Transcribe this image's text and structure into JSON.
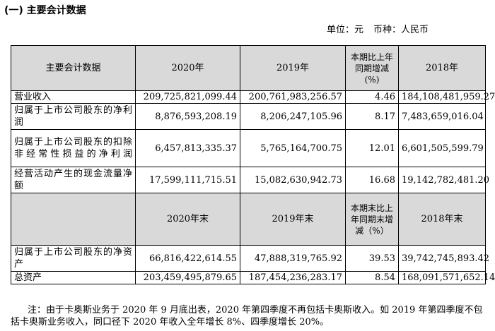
{
  "section_title": "(一) 主要会计数据",
  "unit": {
    "unit_label": "单位：元",
    "currency_label": "币种：人民币"
  },
  "table": {
    "header1": {
      "item": "主要会计数据",
      "y2020": "2020年",
      "y2019": "2019年",
      "change": "本期比上年同期增减(%)",
      "y2018": "2018年"
    },
    "rows1": [
      {
        "label": "营业收入",
        "y2020": "209,725,821,099.44",
        "y2019": "200,761,983,256.57",
        "change": "4.46",
        "y2018": "184,108,481,959.27"
      },
      {
        "label": "归属于上市公司股东的净利润",
        "y2020": "8,876,593,208.19",
        "y2019": "8,206,247,105.96",
        "change": "8.17",
        "y2018": "7,483,659,016.04"
      },
      {
        "label": "归属于上市公司股东的扣除非经常性损益的净利润",
        "y2020": "6,457,813,335.37",
        "y2019": "5,765,164,700.75",
        "change": "12.01",
        "y2018": "6,601,505,599.79"
      },
      {
        "label": "经营活动产生的现金流量净额",
        "y2020": "17,599,111,715.51",
        "y2019": "15,082,630,942.73",
        "change": "16.68",
        "y2018": "19,142,782,481.20"
      }
    ],
    "header2": {
      "item": "",
      "y2020": "2020年末",
      "y2019": "2019年末",
      "change": "本期末比上年同期末增减（%）",
      "y2018": "2018年末"
    },
    "rows2": [
      {
        "label": "归属于上市公司股东的净资产",
        "y2020": "66,816,422,614.55",
        "y2019": "47,888,319,765.92",
        "change": "39.53",
        "y2018": "39,742,745,893.42"
      },
      {
        "label": "总资产",
        "y2020": "203,459,495,879.65",
        "y2019": "187,454,236,283.17",
        "change": "8.54",
        "y2018": "168,091,571,652.14"
      }
    ]
  },
  "note": "注：由于卡奥斯业务于 2020 年 9 月底出表，2020 年第四季度不再包括卡奥斯收入。如 2019 年第四季度不包括卡奥斯业务收入，同口径下 2020 年收入全年增长 8%、四季度增长 20%。"
}
